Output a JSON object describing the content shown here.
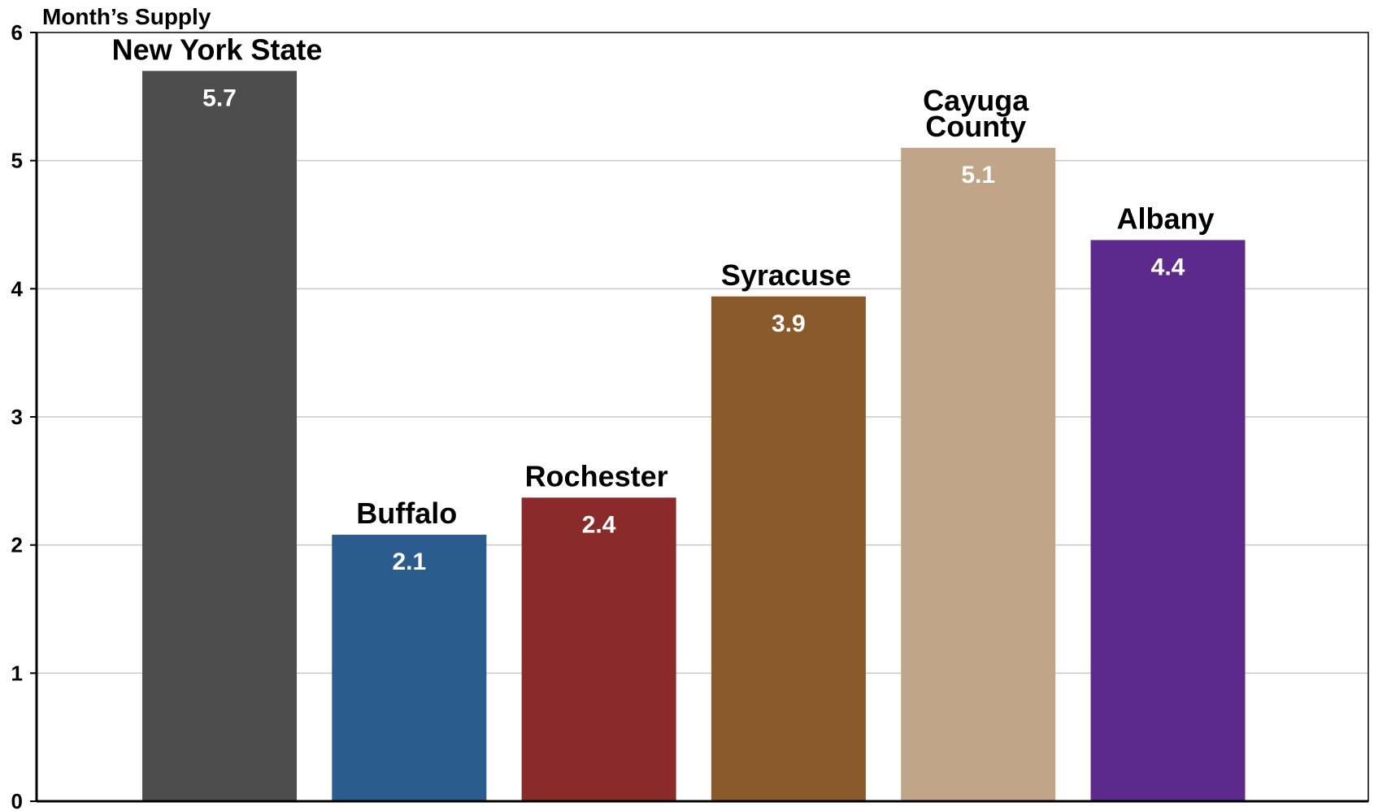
{
  "chart_data": {
    "type": "bar",
    "ylabel": "Month’s Supply",
    "ylim": [
      0,
      6
    ],
    "yticks": [
      "0",
      "1",
      "2",
      "3",
      "4",
      "5",
      "6"
    ],
    "grid": true,
    "categories": [
      [
        "New York State"
      ],
      [
        "Buffalo"
      ],
      [
        "Rochester"
      ],
      [
        "Syracuse"
      ],
      [
        "Cayuga",
        "County"
      ],
      [
        "Albany"
      ]
    ],
    "values": [
      5.7,
      2.08,
      2.37,
      3.94,
      5.1,
      4.38
    ],
    "value_labels": [
      "5.7",
      "2.1",
      "2.4",
      "3.9",
      "5.1",
      "4.4"
    ],
    "colors": [
      "#4d4d4d",
      "#2b5c8e",
      "#8b2a2a",
      "#8b5a2b",
      "#c1a588",
      "#5c2a8c"
    ]
  }
}
